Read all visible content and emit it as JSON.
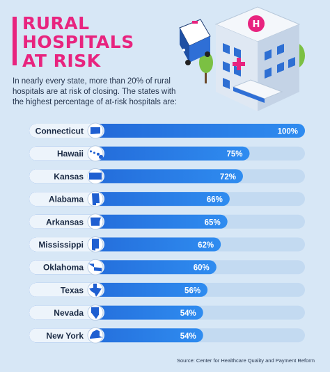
{
  "header": {
    "title_line1": "RURAL",
    "title_line2": "HOSPITALS",
    "title_line3": "AT RISK",
    "intro": "In nearly every state, more than 20% of rural hospitals are at risk of closing. The states with the highest percentage of at-risk hospitals are:"
  },
  "source": "Source: Center for Healthcare Quality and Payment Reform",
  "chart_data": {
    "type": "bar",
    "orientation": "horizontal",
    "categories": [
      "Connecticut",
      "Hawaii",
      "Kansas",
      "Alabama",
      "Arkansas",
      "Mississippi",
      "Oklahoma",
      "Texas",
      "Nevada",
      "New York"
    ],
    "values": [
      100,
      75,
      72,
      66,
      65,
      62,
      60,
      56,
      54,
      54
    ],
    "value_labels": [
      "100%",
      "75%",
      "72%",
      "66%",
      "65%",
      "62%",
      "60%",
      "56%",
      "54%",
      "54%"
    ],
    "xlim": [
      0,
      100
    ],
    "colors": {
      "bar_start": "#1f5fd1",
      "bar_end": "#2f8cf0",
      "track": "#c3daf1",
      "label_pill": "#edf4fb",
      "text": "#1a2a44"
    },
    "icons": [
      "connecticut-icon",
      "hawaii-icon",
      "kansas-icon",
      "alabama-icon",
      "arkansas-icon",
      "mississippi-icon",
      "oklahoma-icon",
      "texas-icon",
      "nevada-icon",
      "new-york-icon"
    ]
  },
  "illustration": {
    "sign_label": "H",
    "icons": [
      "ambulance-icon",
      "hospital-icon",
      "tree-icon"
    ]
  },
  "colors": {
    "accent": "#e8247f",
    "background": "#d7e7f6"
  }
}
